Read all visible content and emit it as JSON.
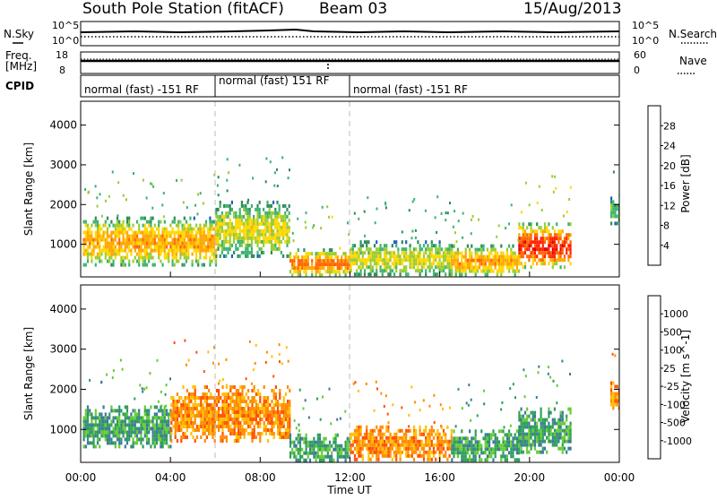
{
  "header": {
    "station": "South Pole Station (fitACF)",
    "beam": "Beam 03",
    "date": "15/Aug/2013"
  },
  "top_panels": {
    "nsky_label": "N.Sky",
    "nsearch_label": "N.Search",
    "freq_label_1": "Freq.",
    "freq_label_2": "[MHz]",
    "nave_label": "Nave",
    "cpid_label": "CPID",
    "noise_left_ticks": [
      "10^5",
      "10^0"
    ],
    "noise_right_ticks": [
      "10^5",
      "10^0"
    ],
    "freq_ticks": [
      "18",
      "8"
    ],
    "nave_ticks": [
      "60",
      "0"
    ],
    "cpid_segments": [
      {
        "label": "normal (fast) -151 RF",
        "start_hr": 0,
        "end_hr": 6
      },
      {
        "label": "normal (fast) 151 RF",
        "start_hr": 6,
        "end_hr": 12
      },
      {
        "label": "normal (fast) -151 RF",
        "start_hr": 12,
        "end_hr": 24
      }
    ]
  },
  "colors": {
    "power_scale": [
      "#1a1aff",
      "#1f5fbf",
      "#2e8b57",
      "#3cb371",
      "#9acd32",
      "#ffd700",
      "#ffa500",
      "#ff6600",
      "#ff2200",
      "#e00000"
    ],
    "velocity_scale": [
      "#ff0000",
      "#ff5000",
      "#ff8c00",
      "#ffc000",
      "#c8c8c8",
      "#66cc33",
      "#2e9e5a",
      "#3c7a9a",
      "#2a5fc0",
      "#1a2aee"
    ]
  },
  "chart_data": [
    {
      "type": "heatmap",
      "panel": "power",
      "xlabel": "Time UT",
      "ylabel": "Slant Range [km]",
      "colorbar_label": "Power [dB]",
      "x_ticks": [
        "00:00",
        "04:00",
        "08:00",
        "12:00",
        "16:00",
        "20:00",
        "00:00"
      ],
      "xlim_hr": [
        0,
        24
      ],
      "y_ticks": [
        1000,
        2000,
        3000,
        4000
      ],
      "ylim_km": [
        180,
        4600
      ],
      "colorbar_ticks": [
        4,
        8,
        12,
        16,
        20,
        24,
        28
      ],
      "colorbar_range": [
        0,
        32
      ],
      "regions": [
        {
          "t0": 0.1,
          "t1": 6.0,
          "r0": 480,
          "r1": 1700,
          "value": 18
        },
        {
          "t0": 6.0,
          "t1": 9.3,
          "r0": 700,
          "r1": 2100,
          "value": 14
        },
        {
          "t0": 9.3,
          "t1": 12.0,
          "r0": 220,
          "r1": 900,
          "value": 20
        },
        {
          "t0": 12.0,
          "t1": 16.5,
          "r0": 220,
          "r1": 1100,
          "value": 14
        },
        {
          "t0": 16.5,
          "t1": 19.5,
          "r0": 220,
          "r1": 1000,
          "value": 18
        },
        {
          "t0": 19.5,
          "t1": 21.8,
          "r0": 400,
          "r1": 1550,
          "value": 24
        },
        {
          "t0": 23.6,
          "t1": 24.0,
          "r0": 1500,
          "r1": 2200,
          "value": 10
        }
      ]
    },
    {
      "type": "heatmap",
      "panel": "velocity",
      "xlabel": "Time UT",
      "ylabel": "Slant Range [km]",
      "colorbar_label": "Velocity [m s^-1]",
      "x_ticks": [
        "00:00",
        "04:00",
        "08:00",
        "12:00",
        "16:00",
        "20:00",
        "00:00"
      ],
      "xlim_hr": [
        0,
        24
      ],
      "y_ticks": [
        1000,
        2000,
        3000,
        4000
      ],
      "ylim_km": [
        180,
        4600
      ],
      "colorbar_ticks": [
        "-1000",
        "-500",
        "-100",
        "-25",
        "25",
        "100",
        "500",
        "1000"
      ],
      "regions": [
        {
          "t0": 0.1,
          "t1": 4.0,
          "r0": 550,
          "r1": 1600,
          "value": 50
        },
        {
          "t0": 4.0,
          "t1": 9.3,
          "r0": 700,
          "r1": 2100,
          "value": -200
        },
        {
          "t0": 9.3,
          "t1": 12.0,
          "r0": 220,
          "r1": 900,
          "value": 60
        },
        {
          "t0": 12.0,
          "t1": 16.5,
          "r0": 220,
          "r1": 1100,
          "value": -150
        },
        {
          "t0": 16.5,
          "t1": 19.5,
          "r0": 220,
          "r1": 1000,
          "value": 80
        },
        {
          "t0": 19.5,
          "t1": 21.8,
          "r0": 400,
          "r1": 1550,
          "value": 150
        },
        {
          "t0": 23.6,
          "t1": 24.0,
          "r0": 1500,
          "r1": 2200,
          "value": -300
        }
      ]
    }
  ]
}
